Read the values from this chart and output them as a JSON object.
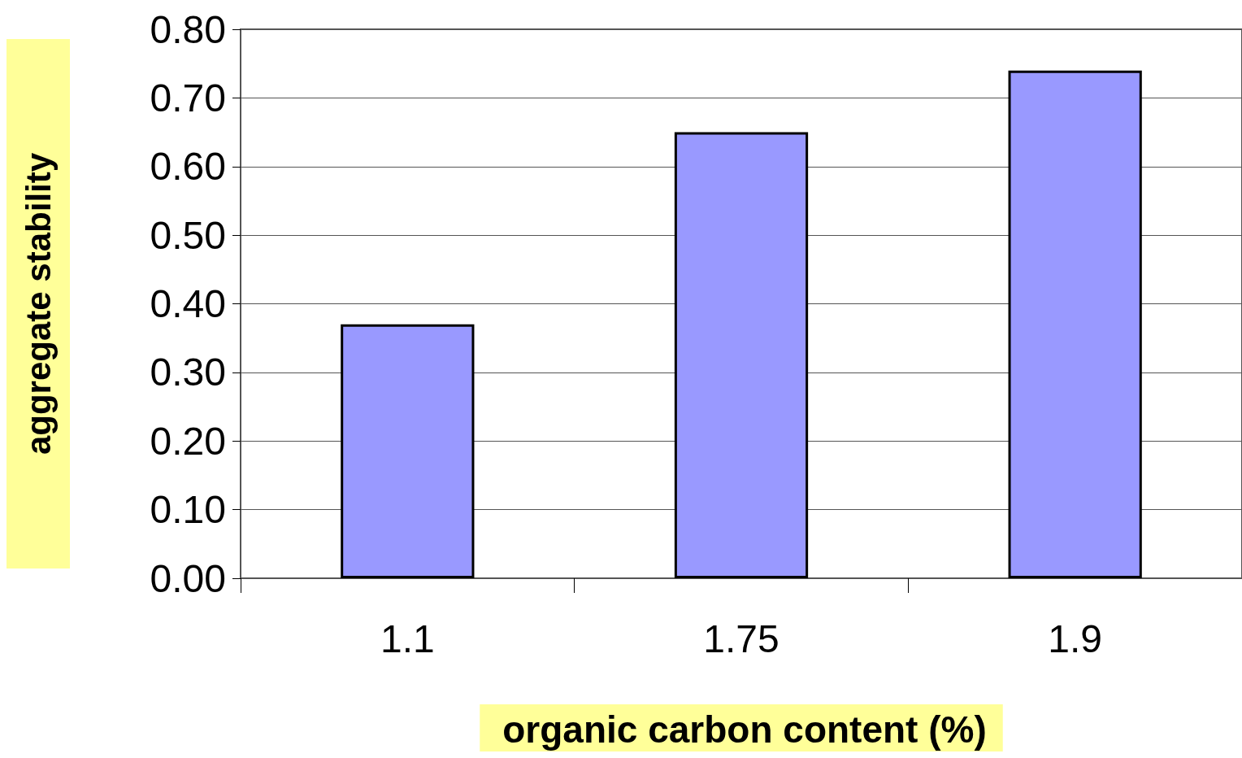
{
  "chart_data": {
    "type": "bar",
    "xlabel": "organic carbon content (%)",
    "ylabel": "aggregate stability",
    "categories": [
      "1.1",
      "1.75",
      "1.9"
    ],
    "values": [
      0.37,
      0.65,
      0.74
    ],
    "color": "#9999ff",
    "ylim": [
      0,
      0.8
    ],
    "yticks": [
      {
        "value": 0,
        "label": "0.00"
      },
      {
        "value": 0.1,
        "label": "0.10"
      },
      {
        "value": 0.2,
        "label": "0.20"
      },
      {
        "value": 0.3,
        "label": "0.30"
      },
      {
        "value": 0.4,
        "label": "0.40"
      },
      {
        "value": 0.5,
        "label": "0.50"
      },
      {
        "value": 0.6,
        "label": "0.60"
      },
      {
        "value": 0.7,
        "label": "0.70"
      },
      {
        "value": 0.8,
        "label": "0.80"
      }
    ],
    "grid": "y"
  }
}
